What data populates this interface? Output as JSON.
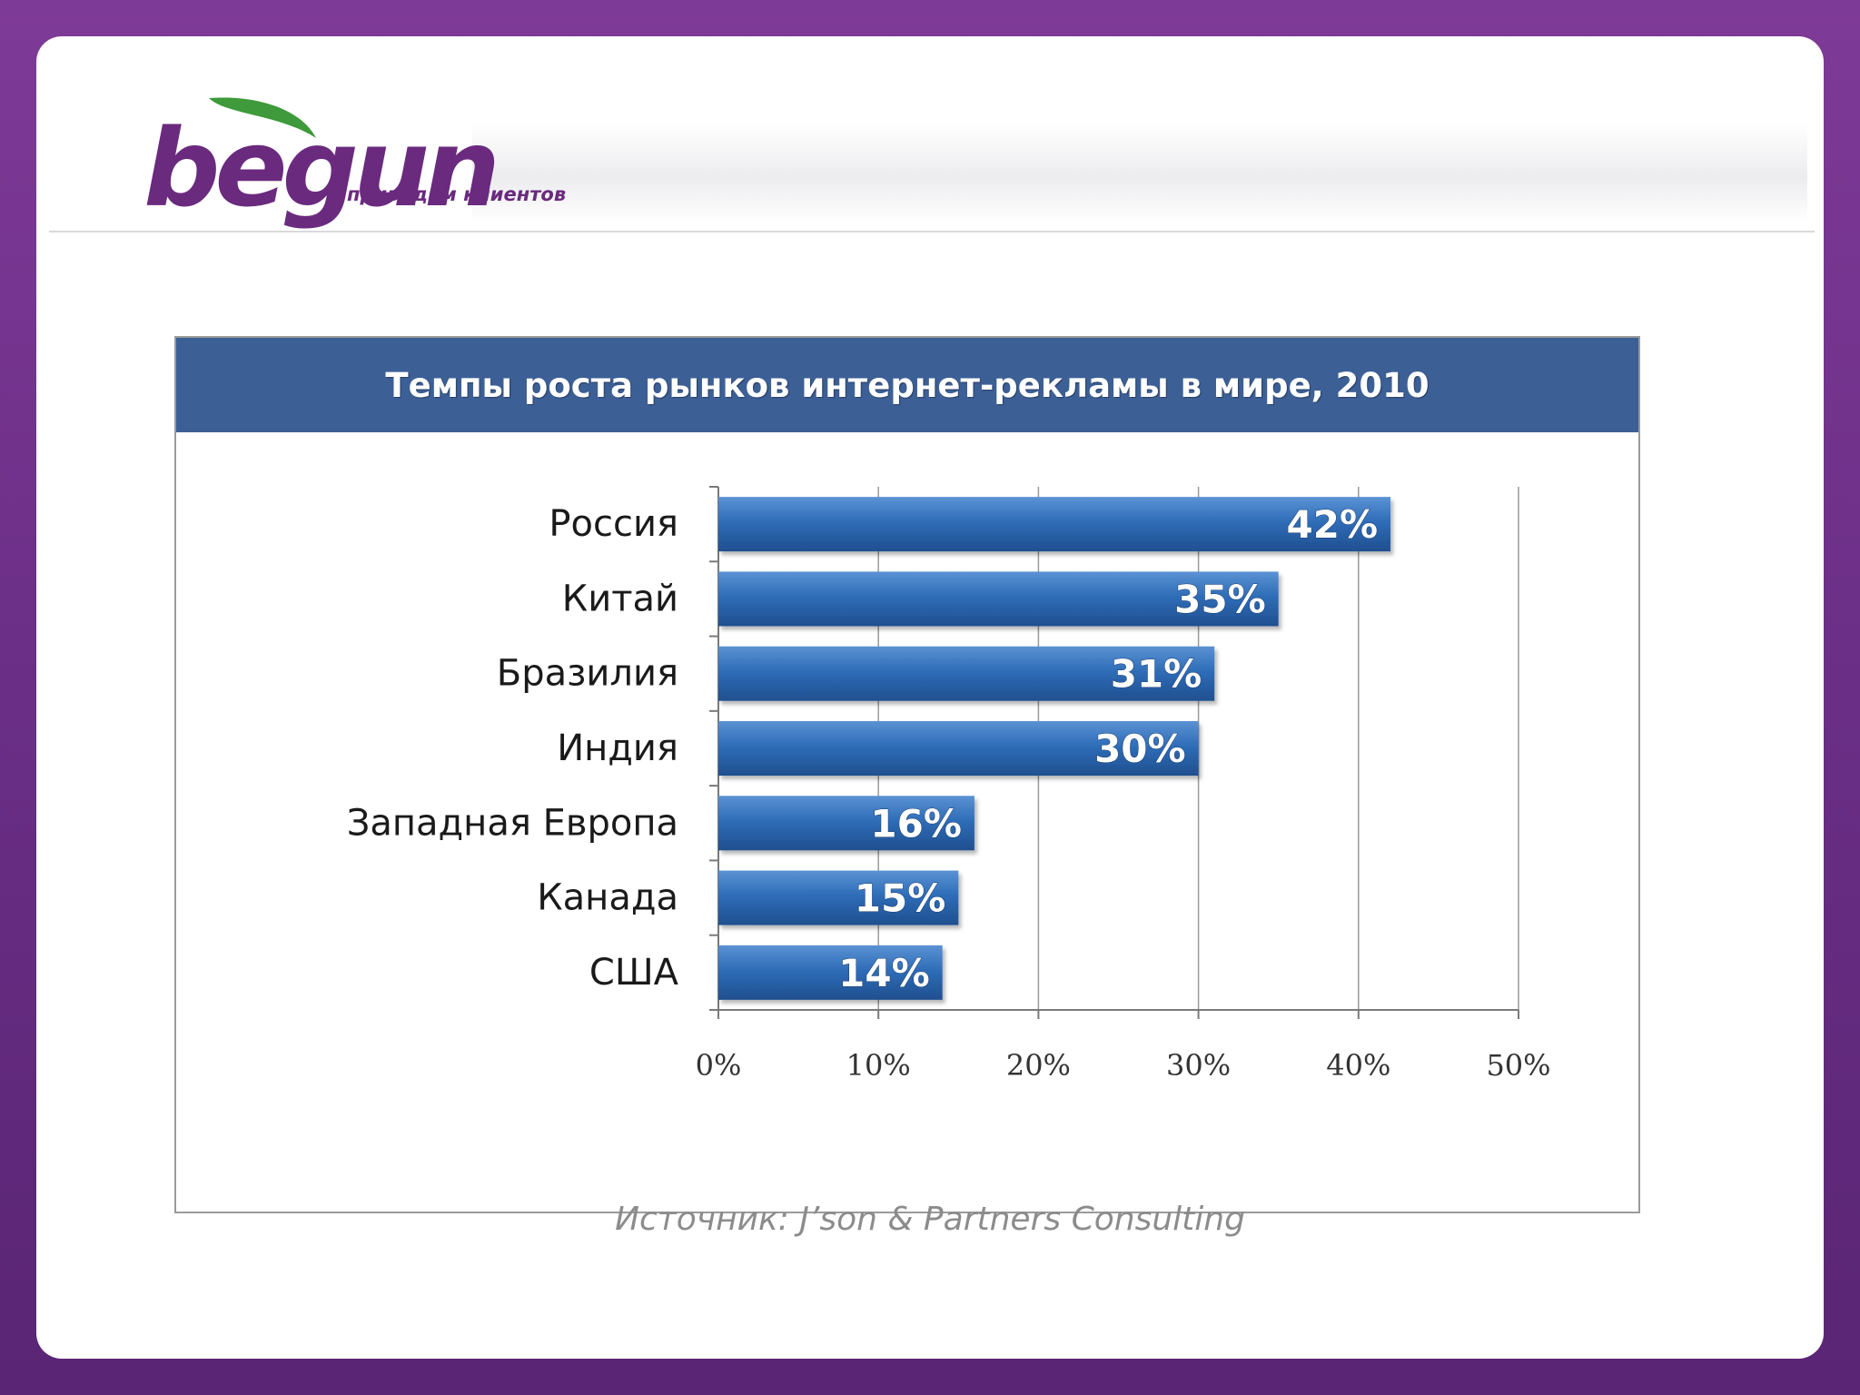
{
  "logo": {
    "text": "begun",
    "tagline": "приводим клиентов"
  },
  "colors": {
    "frame_purple": "#7e3a97",
    "logo_purple": "#6a2a7e",
    "logo_leaf": "#3e9a3a",
    "title_bar": "#3c5f96",
    "bar_fill": "#2f6db8",
    "bar_label": "#ffffff"
  },
  "chart_data": {
    "type": "bar",
    "orientation": "horizontal",
    "title": "Темпы роста рынков интернет-рекламы в мире, 2010",
    "categories": [
      "Россия",
      "Китай",
      "Бразилия",
      "Индия",
      "Западная Европа",
      "Канада",
      "США"
    ],
    "values": [
      42,
      35,
      31,
      30,
      16,
      15,
      14
    ],
    "data_labels": [
      "42%",
      "35%",
      "31%",
      "30%",
      "16%",
      "15%",
      "14%"
    ],
    "xlim": [
      0,
      50
    ],
    "x_ticks": [
      "0%",
      "10%",
      "20%",
      "30%",
      "40%",
      "50%"
    ],
    "x_unit": "%",
    "grid": true,
    "legend": "none"
  },
  "source": "Источник: J’son & Partners Consulting"
}
